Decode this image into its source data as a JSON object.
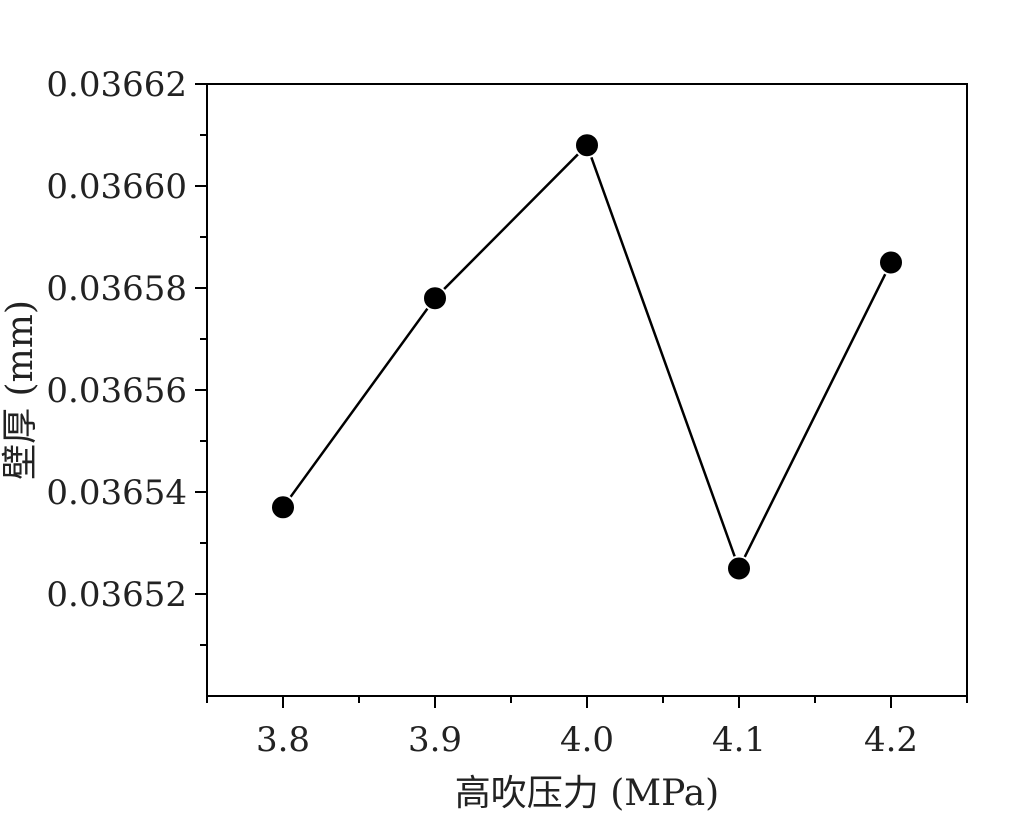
{
  "chart_data": {
    "type": "line",
    "title": "",
    "xlabel": "高吹压力 (MPa)",
    "ylabel": "壁厚 (mm)",
    "x": [
      3.8,
      3.9,
      4.0,
      4.1,
      4.2
    ],
    "series": [
      {
        "values": [
          0.036537,
          0.036578,
          0.036608,
          0.036525,
          0.036585
        ]
      }
    ],
    "xlim": [
      3.75,
      4.25
    ],
    "ylim": [
      0.0365,
      0.03662
    ],
    "x_ticks": [
      "3.8",
      "3.9",
      "4.0",
      "4.1",
      "4.2"
    ],
    "y_ticks": [
      "0.03652",
      "0.03654",
      "0.03656",
      "0.03658",
      "0.03660",
      "0.03662"
    ],
    "grid": false,
    "legend": "none",
    "colors": {
      "line": "#000000",
      "marker": "#000000",
      "frame": "#000000"
    }
  }
}
